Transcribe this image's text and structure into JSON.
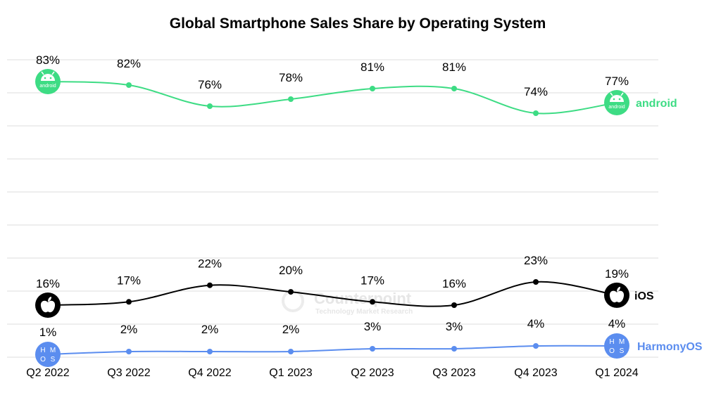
{
  "chart_data": {
    "type": "line",
    "title": "Global Smartphone Sales Share by Operating System",
    "categories": [
      "Q2 2022",
      "Q3 2022",
      "Q4 2022",
      "Q1 2023",
      "Q2 2023",
      "Q3 2023",
      "Q4 2023",
      "Q1 2024"
    ],
    "series": [
      {
        "name": "android",
        "color": "#3ddc84",
        "icon": "android-icon",
        "values": [
          83,
          82,
          76,
          78,
          81,
          81,
          74,
          77
        ],
        "labels": [
          "83%",
          "82%",
          "76%",
          "78%",
          "81%",
          "81%",
          "74%",
          "77%"
        ]
      },
      {
        "name": "iOS",
        "color": "#000000",
        "icon": "apple-icon",
        "values": [
          16,
          17,
          22,
          20,
          17,
          16,
          23,
          19
        ],
        "labels": [
          "16%",
          "17%",
          "22%",
          "20%",
          "17%",
          "16%",
          "23%",
          "19%"
        ]
      },
      {
        "name": "HarmonyOS",
        "color": "#5b8def",
        "icon": "hmos-icon",
        "values": [
          1,
          2,
          2,
          2,
          3,
          3,
          4,
          4
        ],
        "labels": [
          "1%",
          "2%",
          "2%",
          "2%",
          "3%",
          "3%",
          "4%",
          "4%"
        ]
      }
    ],
    "grid": "horizontal",
    "legend": "right, at line ends",
    "icon_text": {
      "android": "android",
      "harmony": [
        "H",
        "M",
        "O",
        "S"
      ]
    },
    "watermark": {
      "brand": "Counterpoint",
      "tagline": "Technology Market Research"
    }
  }
}
